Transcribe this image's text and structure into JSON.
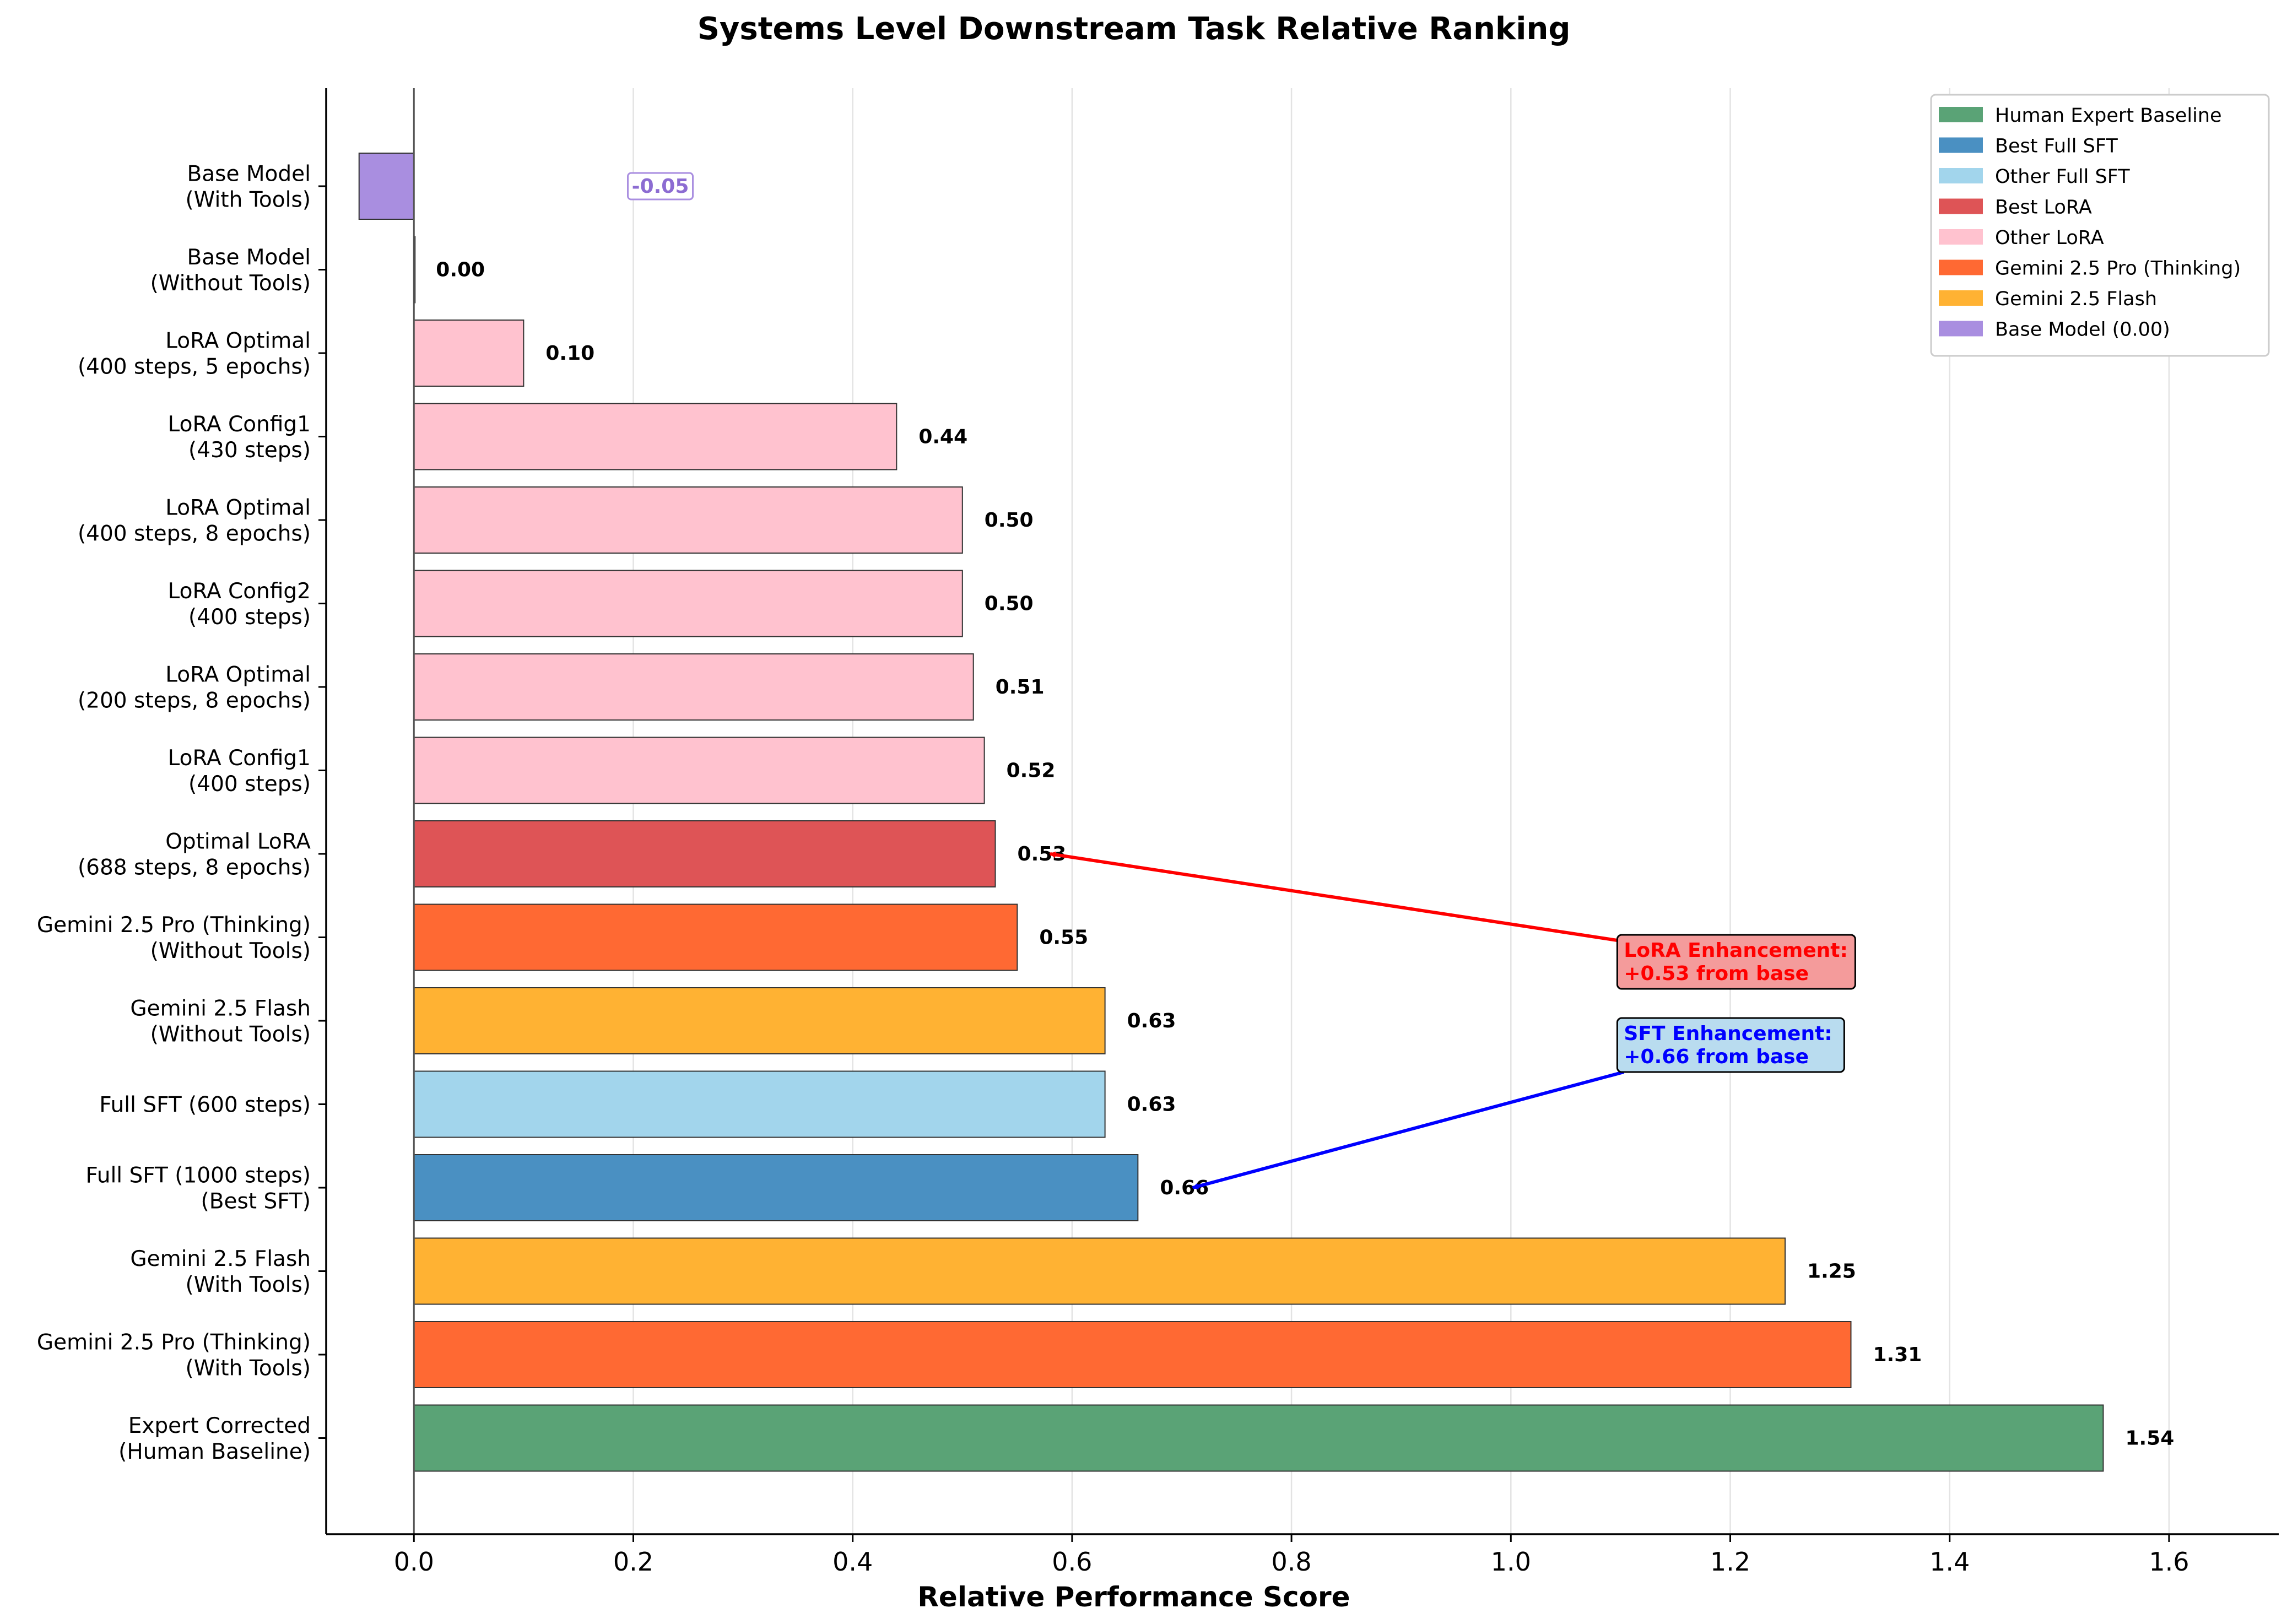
{
  "chart_data": {
    "type": "bar",
    "orientation": "horizontal",
    "title": "Systems Level Downstream Task Relative Ranking",
    "xlabel": "Relative Performance Score",
    "ylabel": "",
    "xlim": [
      -0.08,
      1.7
    ],
    "xticks": [
      "0.0",
      "0.2",
      "0.4",
      "0.6",
      "0.8",
      "1.0",
      "1.2",
      "1.4",
      "1.6"
    ],
    "grid": "vertical",
    "legend_placement": "top-right",
    "bars": [
      {
        "label_lines": [
          "Base Model",
          "(With Tools)"
        ],
        "value": -0.05,
        "value_label": "-0.05",
        "group": "Base Model (0.00)"
      },
      {
        "label_lines": [
          "Base Model",
          "(Without Tools)"
        ],
        "value": 0.0,
        "value_label": "0.00",
        "group": "Base Model (0.00)"
      },
      {
        "label_lines": [
          "LoRA Optimal",
          "(400 steps, 5 epochs)"
        ],
        "value": 0.1,
        "value_label": "0.10",
        "group": "Other LoRA"
      },
      {
        "label_lines": [
          "LoRA Config1",
          "(430 steps)"
        ],
        "value": 0.44,
        "value_label": "0.44",
        "group": "Other LoRA"
      },
      {
        "label_lines": [
          "LoRA Optimal",
          "(400 steps, 8 epochs)"
        ],
        "value": 0.5,
        "value_label": "0.50",
        "group": "Other LoRA"
      },
      {
        "label_lines": [
          "LoRA Config2",
          "(400 steps)"
        ],
        "value": 0.5,
        "value_label": "0.50",
        "group": "Other LoRA"
      },
      {
        "label_lines": [
          "LoRA Optimal",
          "(200 steps, 8 epochs)"
        ],
        "value": 0.51,
        "value_label": "0.51",
        "group": "Other LoRA"
      },
      {
        "label_lines": [
          "LoRA Config1",
          "(400 steps)"
        ],
        "value": 0.52,
        "value_label": "0.52",
        "group": "Other LoRA"
      },
      {
        "label_lines": [
          "Optimal LoRA",
          "(688 steps, 8 epochs)"
        ],
        "value": 0.53,
        "value_label": "0.53",
        "group": "Best LoRA"
      },
      {
        "label_lines": [
          "Gemini 2.5 Pro (Thinking)",
          "(Without Tools)"
        ],
        "value": 0.55,
        "value_label": "0.55",
        "group": "Gemini 2.5 Pro (Thinking)"
      },
      {
        "label_lines": [
          "Gemini 2.5 Flash",
          "(Without Tools)"
        ],
        "value": 0.63,
        "value_label": "0.63",
        "group": "Gemini 2.5 Flash"
      },
      {
        "label_lines": [
          "Full SFT (600 steps)"
        ],
        "value": 0.63,
        "value_label": "0.63",
        "group": "Other Full SFT"
      },
      {
        "label_lines": [
          "Full SFT (1000 steps)",
          "(Best SFT)"
        ],
        "value": 0.66,
        "value_label": "0.66",
        "group": "Best Full SFT"
      },
      {
        "label_lines": [
          "Gemini 2.5 Flash",
          "(With Tools)"
        ],
        "value": 1.25,
        "value_label": "1.25",
        "group": "Gemini 2.5 Flash"
      },
      {
        "label_lines": [
          "Gemini 2.5 Pro (Thinking)",
          "(With Tools)"
        ],
        "value": 1.31,
        "value_label": "1.31",
        "group": "Gemini 2.5 Pro (Thinking)"
      },
      {
        "label_lines": [
          "Expert Corrected",
          "(Human Baseline)"
        ],
        "value": 1.54,
        "value_label": "1.54",
        "group": "Human Expert Baseline"
      }
    ],
    "legend": [
      {
        "label": "Human Expert Baseline",
        "color": "#5aa376"
      },
      {
        "label": "Best Full SFT",
        "color": "#4a90c2"
      },
      {
        "label": "Other Full SFT",
        "color": "#a2d5ec"
      },
      {
        "label": "Best LoRA",
        "color": "#de5456"
      },
      {
        "label": "Other LoRA",
        "color": "#ffc2cf"
      },
      {
        "label": "Gemini 2.5 Pro (Thinking)",
        "color": "#ff6933"
      },
      {
        "label": "Gemini 2.5 Flash",
        "color": "#ffb233"
      },
      {
        "label": "Base Model (0.00)",
        "color": "#a98ee0"
      }
    ],
    "annotations": [
      {
        "lines": [
          "LoRA Enhancement:",
          "+0.53 from base"
        ],
        "text_color": "#ff0000",
        "box_color": "#f49b9b",
        "arrow_color": "#ff0000",
        "text_x": 1.1,
        "target_bar": 8,
        "target_value": 0.58
      },
      {
        "lines": [
          "SFT Enhancement:",
          "+0.66 from base"
        ],
        "text_color": "#0000ff",
        "box_color": "#b9dcef",
        "arrow_color": "#0000ff",
        "text_x": 1.1,
        "target_bar": 12,
        "target_value": 0.71
      }
    ]
  }
}
